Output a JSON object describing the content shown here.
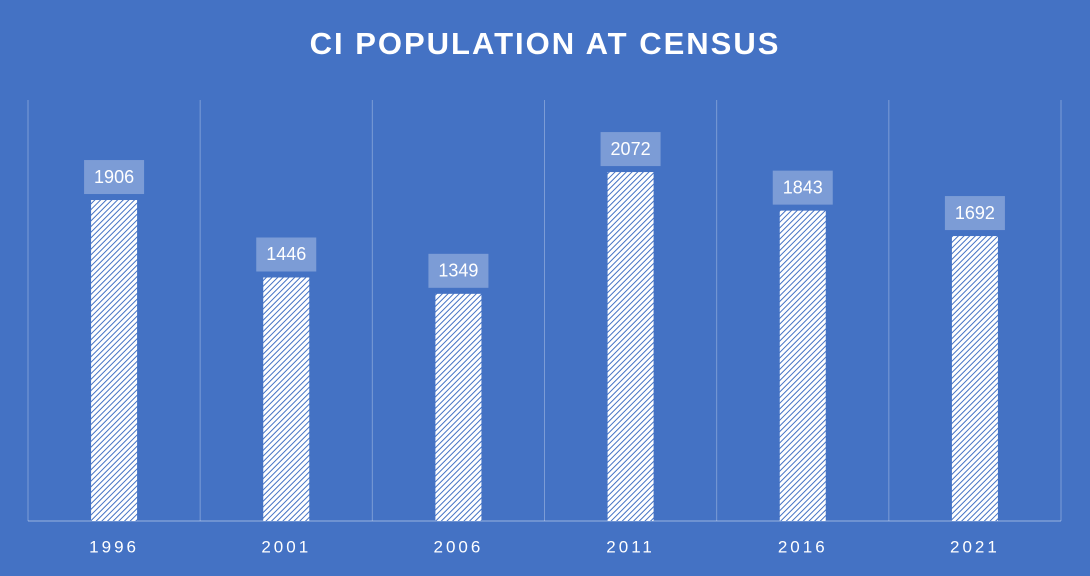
{
  "chart_data": {
    "type": "bar",
    "title": "CI POPULATION AT CENSUS",
    "categories": [
      "1996",
      "2001",
      "2006",
      "2011",
      "2016",
      "2021"
    ],
    "values": [
      1906,
      1446,
      1349,
      2072,
      1843,
      1692
    ],
    "color": "#ffffff",
    "background": "#4472c4",
    "ylim": [
      0,
      2500
    ],
    "data_labels": true
  }
}
